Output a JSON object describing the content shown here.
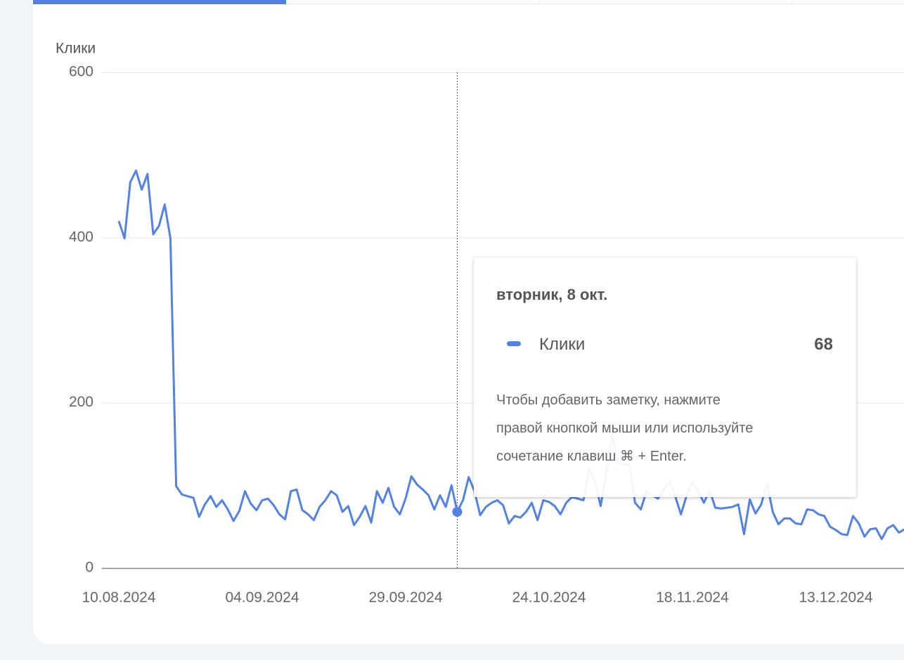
{
  "chart_data": {
    "type": "line",
    "ylabel": "Клики",
    "x": [
      "10.08.2024",
      "11.08.2024",
      "12.08.2024",
      "13.08.2024",
      "14.08.2024",
      "15.08.2024",
      "16.08.2024",
      "17.08.2024",
      "18.08.2024",
      "19.08.2024",
      "20.08.2024",
      "21.08.2024",
      "22.08.2024",
      "23.08.2024",
      "24.08.2024",
      "25.08.2024",
      "26.08.2024",
      "27.08.2024",
      "28.08.2024",
      "29.08.2024",
      "30.08.2024",
      "31.08.2024",
      "01.09.2024",
      "02.09.2024",
      "03.09.2024",
      "04.09.2024",
      "05.09.2024",
      "06.09.2024",
      "07.09.2024",
      "08.09.2024",
      "09.09.2024",
      "10.09.2024",
      "11.09.2024",
      "12.09.2024",
      "13.09.2024",
      "14.09.2024",
      "15.09.2024",
      "16.09.2024",
      "17.09.2024",
      "18.09.2024",
      "19.09.2024",
      "20.09.2024",
      "21.09.2024",
      "22.09.2024",
      "23.09.2024",
      "24.09.2024",
      "25.09.2024",
      "26.09.2024",
      "27.09.2024",
      "28.09.2024",
      "29.09.2024",
      "30.09.2024",
      "01.10.2024",
      "02.10.2024",
      "03.10.2024",
      "04.10.2024",
      "05.10.2024",
      "06.10.2024",
      "07.10.2024",
      "08.10.2024",
      "09.10.2024",
      "10.10.2024",
      "11.10.2024",
      "12.10.2024",
      "13.10.2024",
      "14.10.2024",
      "15.10.2024",
      "16.10.2024",
      "17.10.2024",
      "18.10.2024",
      "19.10.2024",
      "20.10.2024",
      "21.10.2024",
      "22.10.2024",
      "23.10.2024",
      "24.10.2024",
      "25.10.2024",
      "26.10.2024",
      "27.10.2024",
      "28.10.2024",
      "29.10.2024",
      "30.10.2024",
      "31.10.2024",
      "01.11.2024",
      "02.11.2024",
      "03.11.2024",
      "04.11.2024",
      "05.11.2024",
      "06.11.2024",
      "07.11.2024",
      "08.11.2024",
      "09.11.2024",
      "10.11.2024",
      "11.11.2024",
      "12.11.2024",
      "13.11.2024",
      "14.11.2024",
      "15.11.2024",
      "16.11.2024",
      "17.11.2024",
      "18.11.2024",
      "19.11.2024",
      "20.11.2024",
      "21.11.2024",
      "22.11.2024",
      "23.11.2024",
      "24.11.2024",
      "25.11.2024",
      "26.11.2024",
      "27.11.2024",
      "28.11.2024",
      "29.11.2024",
      "30.11.2024",
      "01.12.2024",
      "02.12.2024",
      "03.12.2024",
      "04.12.2024",
      "05.12.2024",
      "06.12.2024",
      "07.12.2024",
      "08.12.2024",
      "09.12.2024",
      "10.12.2024",
      "11.12.2024",
      "12.12.2024",
      "13.12.2024",
      "14.12.2024",
      "15.12.2024",
      "16.12.2024",
      "17.12.2024",
      "18.12.2024",
      "19.12.2024",
      "20.12.2024",
      "21.12.2024",
      "22.12.2024",
      "23.12.2024",
      "24.12.2024",
      "25.12.2024"
    ],
    "series": [
      {
        "name": "Клики",
        "color": "#5282e3",
        "values": [
          420,
          399,
          467,
          481,
          458,
          477,
          404,
          414,
          440,
          399,
          99,
          89,
          87,
          85,
          62,
          77,
          87,
          74,
          82,
          71,
          57,
          69,
          93,
          78,
          70,
          82,
          84,
          76,
          65,
          59,
          93,
          95,
          70,
          65,
          58,
          74,
          82,
          93,
          88,
          68,
          75,
          52,
          62,
          75,
          55,
          93,
          79,
          97,
          74,
          65,
          84,
          111,
          101,
          95,
          88,
          71,
          88,
          74,
          100,
          68,
          82,
          110,
          93,
          64,
          74,
          79,
          82,
          76,
          54,
          63,
          61,
          68,
          79,
          58,
          82,
          80,
          75,
          65,
          79,
          86,
          84,
          82,
          120,
          105,
          75,
          116,
          161,
          129,
          125,
          125,
          79,
          71,
          93,
          88,
          84,
          95,
          104,
          87,
          65,
          88,
          104,
          93,
          79,
          94,
          73,
          72,
          73,
          74,
          77,
          41,
          83,
          66,
          77,
          103,
          68,
          53,
          60,
          60,
          54,
          53,
          71,
          70,
          65,
          63,
          50,
          46,
          41,
          40,
          63,
          54,
          38,
          47,
          48,
          35,
          48,
          52,
          43,
          47
        ]
      }
    ],
    "ylim": [
      0,
      600
    ],
    "yticks": [
      0,
      200,
      400,
      600
    ],
    "xticks": [
      "10.08.2024",
      "04.09.2024",
      "29.09.2024",
      "24.10.2024",
      "18.11.2024",
      "13.12.2024"
    ],
    "grid": true,
    "tooltip": {
      "title": "вторник, 8 окт.",
      "note": [
        "Чтобы добавить заметку, нажмите",
        "правой кнопкой мыши или используйте",
        "сочетание клавиш ⌘ + Enter."
      ]
    }
  }
}
